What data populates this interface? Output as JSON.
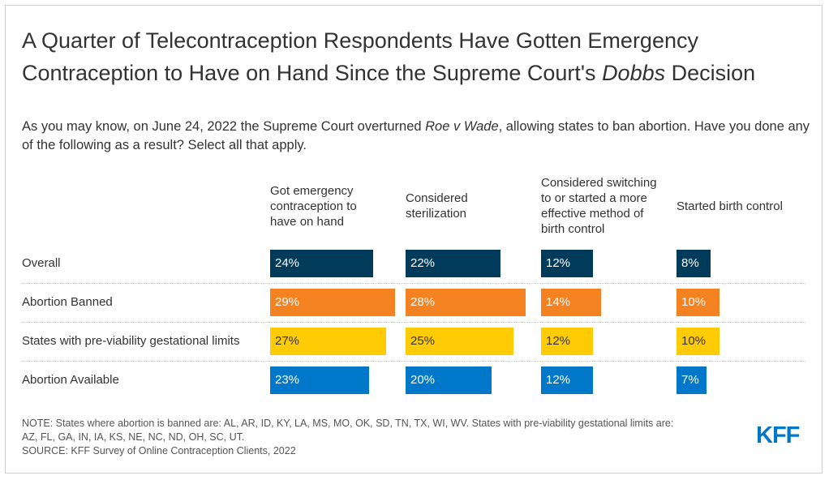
{
  "title_part1": "A Quarter of Telecontraception Respondents Have Gotten Emergency Contraception to Have on Hand Since the Supreme Court's ",
  "title_italic": "Dobbs",
  "title_part2": " Decision",
  "subtitle_part1": "As you may know, on June 24, 2022 the Supreme Court overturned ",
  "subtitle_italic": "Roe v Wade",
  "subtitle_part2": ", allowing states to ban abortion. Have you done any of the following as a result? Select all that apply.",
  "chart_data": {
    "type": "bar",
    "layout": "small-multiples-horizontal",
    "categories": [
      "Got emergency contraception to have on hand",
      "Considered sterilization",
      "Considered switching to or started a more effective method of birth control",
      "Started birth control"
    ],
    "rows": [
      {
        "name": "Overall",
        "color": "#003b5c",
        "text_color": "#ffffff",
        "values": [
          24,
          22,
          12,
          8
        ]
      },
      {
        "name": "Abortion Banned",
        "color": "#f58220",
        "text_color": "#ffffff",
        "values": [
          29,
          28,
          14,
          10
        ]
      },
      {
        "name": "States with pre-viability gestational limits",
        "color": "#ffcb05",
        "text_color": "#333333",
        "values": [
          27,
          25,
          12,
          10
        ]
      },
      {
        "name": "Abortion Available",
        "color": "#0077c8",
        "text_color": "#ffffff",
        "values": [
          23,
          20,
          12,
          7
        ]
      }
    ],
    "value_suffix": "%"
  },
  "notes": {
    "line1": "NOTE: States where abortion is banned are: AL, AR, ID, KY, LA, MS, MO, OK, SD, TN, TX, WI, WV. States with pre-viability gestational limits are:",
    "line2": "AZ, FL, GA, IN, IA, KS, NE, NC, ND, OH, SC, UT.",
    "line3": "SOURCE: KFF Survey of Online Contraception Clients, 2022"
  },
  "logo_text": "KFF"
}
